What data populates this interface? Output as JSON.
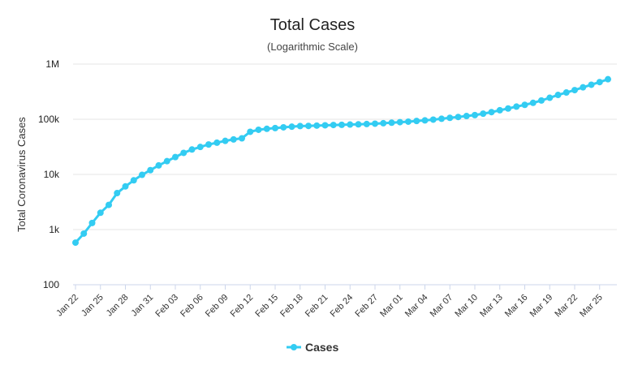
{
  "chart_data": {
    "type": "line",
    "title": "Total Cases",
    "subtitle": "(Logarithmic Scale)",
    "ylabel": "Total Coronavirus Cases",
    "xlabel": "",
    "y_scale": "log",
    "ylim": [
      100,
      1000000
    ],
    "y_ticks": [
      {
        "value": 100,
        "label": "100"
      },
      {
        "value": 1000,
        "label": "1k"
      },
      {
        "value": 10000,
        "label": "10k"
      },
      {
        "value": 100000,
        "label": "100k"
      },
      {
        "value": 1000000,
        "label": "1M"
      }
    ],
    "x_tick_labels": [
      "Jan 22",
      "Jan 25",
      "Jan 28",
      "Jan 31",
      "Feb 03",
      "Feb 06",
      "Feb 09",
      "Feb 12",
      "Feb 15",
      "Feb 18",
      "Feb 21",
      "Feb 24",
      "Feb 27",
      "Mar 01",
      "Mar 04",
      "Mar 07",
      "Mar 10",
      "Mar 13",
      "Mar 16",
      "Mar 19",
      "Mar 22",
      "Mar 25"
    ],
    "grid": true,
    "legend": {
      "position": "bottom-center",
      "entries": [
        "Cases"
      ]
    },
    "series_color": "#33ccf2",
    "series": [
      {
        "name": "Cases",
        "x": [
          "Jan 22",
          "Jan 23",
          "Jan 24",
          "Jan 25",
          "Jan 26",
          "Jan 27",
          "Jan 28",
          "Jan 29",
          "Jan 30",
          "Jan 31",
          "Feb 01",
          "Feb 02",
          "Feb 03",
          "Feb 04",
          "Feb 05",
          "Feb 06",
          "Feb 07",
          "Feb 08",
          "Feb 09",
          "Feb 10",
          "Feb 11",
          "Feb 12",
          "Feb 13",
          "Feb 14",
          "Feb 15",
          "Feb 16",
          "Feb 17",
          "Feb 18",
          "Feb 19",
          "Feb 20",
          "Feb 21",
          "Feb 22",
          "Feb 23",
          "Feb 24",
          "Feb 25",
          "Feb 26",
          "Feb 27",
          "Feb 28",
          "Feb 29",
          "Mar 01",
          "Mar 02",
          "Mar 03",
          "Mar 04",
          "Mar 05",
          "Mar 06",
          "Mar 07",
          "Mar 08",
          "Mar 09",
          "Mar 10",
          "Mar 11",
          "Mar 12",
          "Mar 13",
          "Mar 14",
          "Mar 15",
          "Mar 16",
          "Mar 17",
          "Mar 18",
          "Mar 19",
          "Mar 20",
          "Mar 21",
          "Mar 22",
          "Mar 23",
          "Mar 24",
          "Mar 25",
          "Mar 26"
        ],
        "values": [
          580,
          845,
          1317,
          2015,
          2800,
          4581,
          6058,
          7813,
          9823,
          11950,
          14553,
          17391,
          20630,
          24545,
          28266,
          31439,
          34876,
          37552,
          40553,
          43099,
          45134,
          59287,
          64438,
          67100,
          69197,
          71329,
          73332,
          75184,
          75700,
          76677,
          77673,
          78651,
          79205,
          80087,
          80828,
          81820,
          83112,
          84615,
          86604,
          88585,
          90443,
          93016,
          95314,
          98425,
          102050,
          106099,
          109991,
          114381,
          118948,
          126214,
          134576,
          145483,
          156653,
          169593,
          182490,
          198238,
          218822,
          244933,
          275597,
          305036,
          337489,
          378830,
          422574,
          471035,
          531865
        ]
      }
    ]
  }
}
